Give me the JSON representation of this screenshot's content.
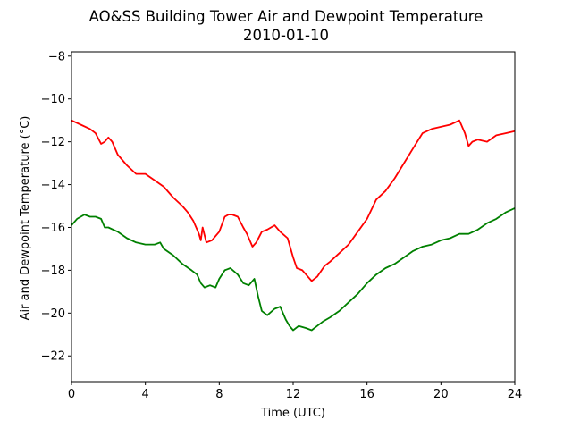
{
  "chart_data": {
    "type": "line",
    "title": "AO&SS Building Tower Air and Dewpoint Temperature",
    "subtitle": "2010-01-10",
    "xlabel": "Time (UTC)",
    "ylabel": "Air and Dewpoint Temperature (°C)",
    "xlim": [
      0,
      24
    ],
    "ylim": [
      -23.2,
      -7.8
    ],
    "xticks": [
      0,
      4,
      8,
      12,
      16,
      20,
      24
    ],
    "xtick_labels": [
      "0",
      "4",
      "8",
      "12",
      "16",
      "20",
      "24"
    ],
    "yticks": [
      -22,
      -20,
      -18,
      -16,
      -14,
      -12,
      -10,
      -8
    ],
    "ytick_labels": [
      "−22",
      "−20",
      "−18",
      "−16",
      "−14",
      "−12",
      "−10",
      "−8"
    ],
    "grid": false,
    "series": [
      {
        "color": "#ff0000",
        "x": [
          0,
          0.5,
          1,
          1.3,
          1.6,
          1.8,
          2.0,
          2.2,
          2.5,
          3.0,
          3.5,
          4.0,
          4.5,
          5.0,
          5.5,
          6.0,
          6.3,
          6.6,
          6.9,
          7.0,
          7.1,
          7.3,
          7.6,
          8.0,
          8.3,
          8.5,
          8.7,
          9.0,
          9.3,
          9.5,
          9.8,
          10.0,
          10.3,
          10.6,
          11.0,
          11.3,
          11.7,
          12.0,
          12.2,
          12.5,
          12.8,
          13.0,
          13.3,
          13.7,
          14.0,
          14.5,
          15.0,
          15.5,
          16.0,
          16.5,
          17.0,
          17.5,
          18.0,
          18.5,
          19.0,
          19.5,
          20.0,
          20.5,
          21.0,
          21.3,
          21.5,
          21.7,
          22.0,
          22.5,
          23.0,
          23.5,
          24.0
        ],
        "values": [
          -11.0,
          -11.2,
          -11.4,
          -11.6,
          -12.1,
          -12.0,
          -11.8,
          -12.0,
          -12.6,
          -13.1,
          -13.5,
          -13.5,
          -13.8,
          -14.1,
          -14.6,
          -15.0,
          -15.3,
          -15.7,
          -16.3,
          -16.6,
          -16.0,
          -16.7,
          -16.6,
          -16.2,
          -15.5,
          -15.4,
          -15.4,
          -15.5,
          -16.0,
          -16.3,
          -16.9,
          -16.7,
          -16.2,
          -16.1,
          -15.9,
          -16.2,
          -16.5,
          -17.4,
          -17.9,
          -18.0,
          -18.3,
          -18.5,
          -18.3,
          -17.8,
          -17.6,
          -17.2,
          -16.8,
          -16.2,
          -15.6,
          -14.7,
          -14.3,
          -13.7,
          -13.0,
          -12.3,
          -11.6,
          -11.4,
          -11.3,
          -11.2,
          -11.0,
          -11.6,
          -12.2,
          -12.0,
          -11.9,
          -12.0,
          -11.7,
          -11.6,
          -11.5
        ]
      },
      {
        "color": "#008000",
        "x": [
          0,
          0.3,
          0.7,
          1.0,
          1.3,
          1.6,
          1.8,
          2.0,
          2.5,
          3.0,
          3.5,
          4.0,
          4.5,
          4.8,
          5.0,
          5.5,
          6.0,
          6.5,
          6.8,
          7.0,
          7.2,
          7.5,
          7.8,
          8.0,
          8.3,
          8.6,
          9.0,
          9.3,
          9.6,
          9.9,
          10.1,
          10.3,
          10.6,
          11.0,
          11.3,
          11.6,
          11.8,
          12.0,
          12.3,
          12.7,
          13.0,
          13.3,
          13.6,
          14.0,
          14.5,
          15.0,
          15.5,
          16.0,
          16.5,
          17.0,
          17.5,
          18.0,
          18.5,
          19.0,
          19.5,
          20.0,
          20.5,
          21.0,
          21.5,
          22.0,
          22.5,
          23.0,
          23.5,
          24.0
        ],
        "values": [
          -15.9,
          -15.6,
          -15.4,
          -15.5,
          -15.5,
          -15.6,
          -16.0,
          -16.0,
          -16.2,
          -16.5,
          -16.7,
          -16.8,
          -16.8,
          -16.7,
          -17.0,
          -17.3,
          -17.7,
          -18.0,
          -18.2,
          -18.6,
          -18.8,
          -18.7,
          -18.8,
          -18.4,
          -18.0,
          -17.9,
          -18.2,
          -18.6,
          -18.7,
          -18.4,
          -19.2,
          -19.9,
          -20.1,
          -19.8,
          -19.7,
          -20.3,
          -20.6,
          -20.8,
          -20.6,
          -20.7,
          -20.8,
          -20.6,
          -20.4,
          -20.2,
          -19.9,
          -19.5,
          -19.1,
          -18.6,
          -18.2,
          -17.9,
          -17.7,
          -17.4,
          -17.1,
          -16.9,
          -16.8,
          -16.6,
          -16.5,
          -16.3,
          -16.3,
          -16.1,
          -15.8,
          -15.6,
          -15.3,
          -15.1
        ]
      }
    ]
  }
}
